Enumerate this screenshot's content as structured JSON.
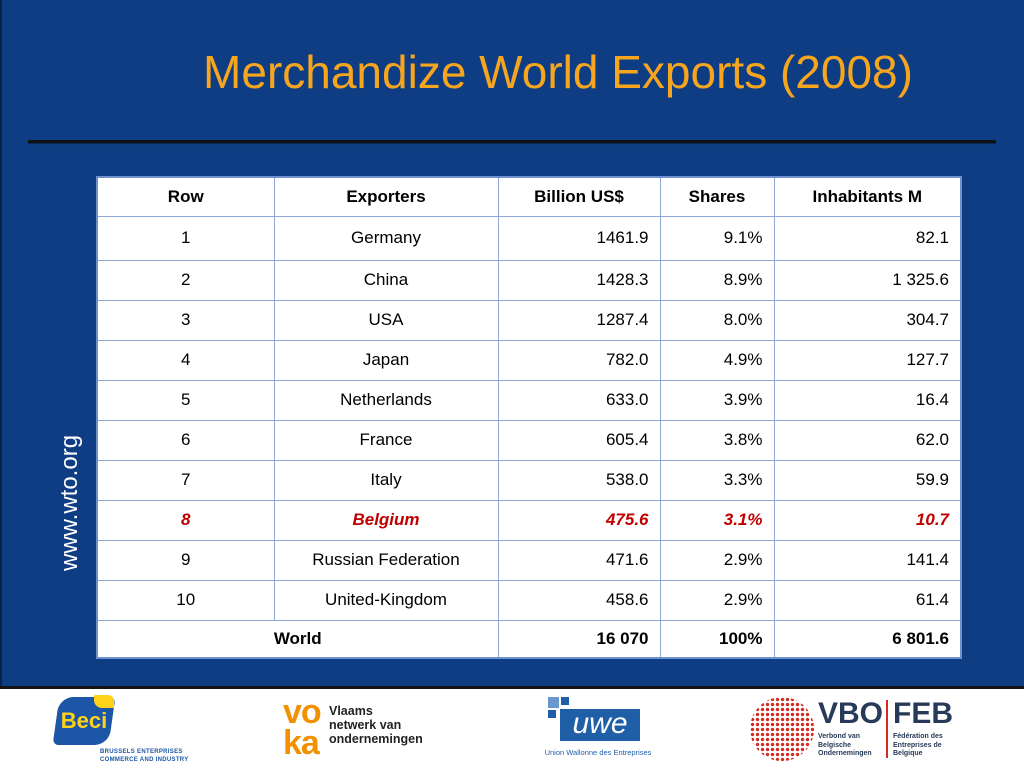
{
  "slide": {
    "title": "Merchandize World Exports (2008)",
    "side_label": "www.wto.org",
    "colors": {
      "background": "#0e3d84",
      "title": "#f6a51e",
      "side_label": "#ffffff",
      "highlight": "#c00000",
      "table_grid": "#8ea9d8",
      "table_outer_border": "#6e90cc"
    }
  },
  "table": {
    "headers": [
      "Row",
      "Exporters",
      "Billion US$",
      "Shares",
      "Inhabitants M"
    ],
    "rows": [
      {
        "row": "1",
        "exporter": "Germany",
        "billion_usd": "1461.9",
        "share": "9.1%",
        "inhabitants_m": "82.1"
      },
      {
        "row": "2",
        "exporter": "China",
        "billion_usd": "1428.3",
        "share": "8.9%",
        "inhabitants_m": "1 325.6"
      },
      {
        "row": "3",
        "exporter": "USA",
        "billion_usd": "1287.4",
        "share": "8.0%",
        "inhabitants_m": "304.7"
      },
      {
        "row": "4",
        "exporter": "Japan",
        "billion_usd": "782.0",
        "share": "4.9%",
        "inhabitants_m": "127.7"
      },
      {
        "row": "5",
        "exporter": "Netherlands",
        "billion_usd": "633.0",
        "share": "3.9%",
        "inhabitants_m": "16.4"
      },
      {
        "row": "6",
        "exporter": "France",
        "billion_usd": "605.4",
        "share": "3.8%",
        "inhabitants_m": "62.0"
      },
      {
        "row": "7",
        "exporter": "Italy",
        "billion_usd": "538.0",
        "share": "3.3%",
        "inhabitants_m": "59.9"
      },
      {
        "row": "8",
        "exporter": "Belgium",
        "billion_usd": "475.6",
        "share": "3.1%",
        "inhabitants_m": "10.7",
        "highlighted": true
      },
      {
        "row": "9",
        "exporter": "Russian Federation",
        "billion_usd": "471.6",
        "share": "2.9%",
        "inhabitants_m": "141.4"
      },
      {
        "row": "10",
        "exporter": "United-Kingdom",
        "billion_usd": "458.6",
        "share": "2.9%",
        "inhabitants_m": "61.4"
      }
    ],
    "total": {
      "label": "World",
      "billion_usd": "16 070",
      "share": "100%",
      "inhabitants_m": "6 801.6"
    }
  },
  "footer": {
    "beci": {
      "wordmark": "Beci",
      "line1": "BRUSSELS ENTERPRISES",
      "line2": "COMMERCE AND INDUSTRY"
    },
    "voka": {
      "mark": [
        "vo",
        "ka"
      ],
      "lines": [
        "Vlaams",
        "netwerk van",
        "ondernemingen"
      ]
    },
    "uwe": {
      "wordmark": "uwe",
      "caption": "Union Wallonne des Entreprises"
    },
    "vbo_feb": {
      "left": "VBO",
      "right": "FEB",
      "left_caption": [
        "Verbond van",
        "Belgische",
        "Ondernemingen"
      ],
      "right_caption": [
        "Fédération des",
        "Entreprises de",
        "Belgique"
      ]
    },
    "colors": {
      "beci_blue": "#1d56a6",
      "beci_yellow": "#ffd21a",
      "voka_orange": "#f29100",
      "uwe_blue": "#1f5fa8",
      "uwe_light": "#6b97cf",
      "vbo_red": "#d42a20",
      "vbo_navy": "#273a59"
    }
  }
}
